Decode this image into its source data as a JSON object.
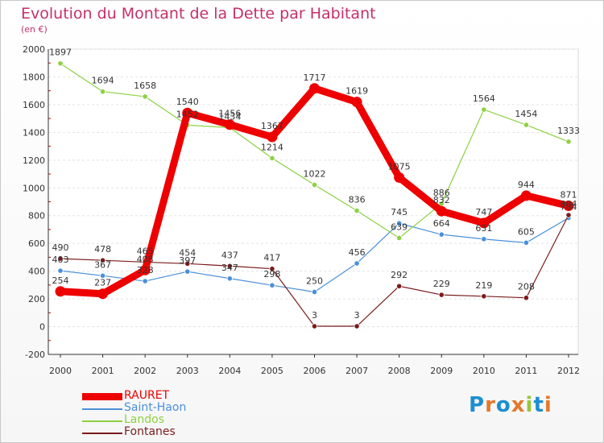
{
  "header": {
    "title": "Evolution du Montant de la Dette par Habitant",
    "subtitle": "(en €)"
  },
  "logo": {
    "text": "Proxiti",
    "colors": [
      "#1c8fd1",
      "#e5782c",
      "#1c8fd1",
      "#e5782c",
      "#9bc53d",
      "#1c8fd1",
      "#e5782c"
    ]
  },
  "chart_data": {
    "type": "line",
    "title": "Evolution du Montant de la Dette par Habitant",
    "subtitle": "(en €)",
    "xlabel": "",
    "ylabel": "",
    "categories": [
      "2000",
      "2001",
      "2002",
      "2003",
      "2004",
      "2005",
      "2006",
      "2007",
      "2008",
      "2009",
      "2010",
      "2011",
      "2012"
    ],
    "ylim": [
      -200,
      2000
    ],
    "yticks": [
      -200,
      0,
      200,
      400,
      600,
      800,
      1000,
      1200,
      1400,
      1600,
      1800,
      2000
    ],
    "ytick_labels": [
      "-200",
      "0",
      "200",
      "400",
      "600",
      "800",
      "1000",
      "1200",
      "1400",
      "1600",
      "1800",
      "2000"
    ],
    "grid": true,
    "legend_position": "bottom-left",
    "series": [
      {
        "name": "RAURET",
        "color": "#ee0000",
        "values": [
          254,
          237,
          408,
          1540,
          1456,
          1367,
          1717,
          1619,
          1075,
          832,
          747,
          944,
          871
        ]
      },
      {
        "name": "Saint-Haon",
        "color": "#4a90d9",
        "values": [
          403,
          367,
          328,
          397,
          347,
          298,
          250,
          456,
          745,
          664,
          631,
          605,
          784
        ]
      },
      {
        "name": "Landos",
        "color": "#8dd142",
        "values": [
          1897,
          1694,
          1658,
          1452,
          1434,
          1214,
          1022,
          836,
          639,
          886,
          1564,
          1454,
          1333
        ]
      },
      {
        "name": "Fontanes",
        "color": "#7a1c1c",
        "values": [
          490,
          478,
          465,
          454,
          437,
          417,
          3,
          3,
          292,
          229,
          219,
          208,
          804
        ]
      }
    ]
  }
}
